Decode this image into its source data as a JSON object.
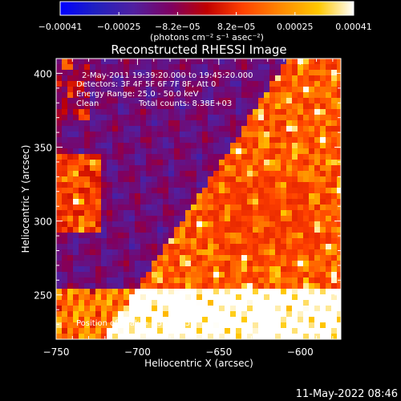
{
  "chart_data": {
    "type": "heatmap",
    "title": "Reconstructed RHESSI Image",
    "xlabel": "Heliocentric X (arcsec)",
    "ylabel": "Heliocentric Y (arcsec)",
    "xlim": [
      -750,
      -575
    ],
    "ylim": [
      220,
      410
    ],
    "x_ticks": [
      -750,
      -700,
      -650,
      -600
    ],
    "x_tick_labels": [
      "−750",
      "−700",
      "−650",
      "−600"
    ],
    "y_ticks": [
      250,
      300,
      350,
      400
    ],
    "y_tick_labels": [
      "250",
      "300",
      "350",
      "400"
    ],
    "colorbar": {
      "range": [
        -0.00041,
        0.00041
      ],
      "tick_labels": [
        "−0.00041",
        "−0.00025",
        "−8.2e−05",
        "8.2e−05",
        "0.00025",
        "0.00041"
      ],
      "unit_label": "(photons cm⁻² s⁻¹ asec⁻²)",
      "colors": [
        "#0000ff",
        "#2020c0",
        "#5020a0",
        "#800060",
        "#c00000",
        "#ff4000",
        "#ff8800",
        "#ffc800",
        "#ffffff"
      ]
    },
    "annotations": {
      "time_range": "2-May-2011 19:39:20.000 to 19:45:20.000",
      "detectors": "Detectors: 3F 4F 5F 6F 7F 8F, Att 0",
      "energy_range": "Energy Range: 25.0 - 50.0 keV",
      "clean_label": "Clean",
      "total_counts": "Total counts: 8.38E+03",
      "peak_position": "Position of Peak = [-583,375]"
    },
    "grid": false
  },
  "footer": {
    "timestamp": "11-May-2022 08:46"
  }
}
